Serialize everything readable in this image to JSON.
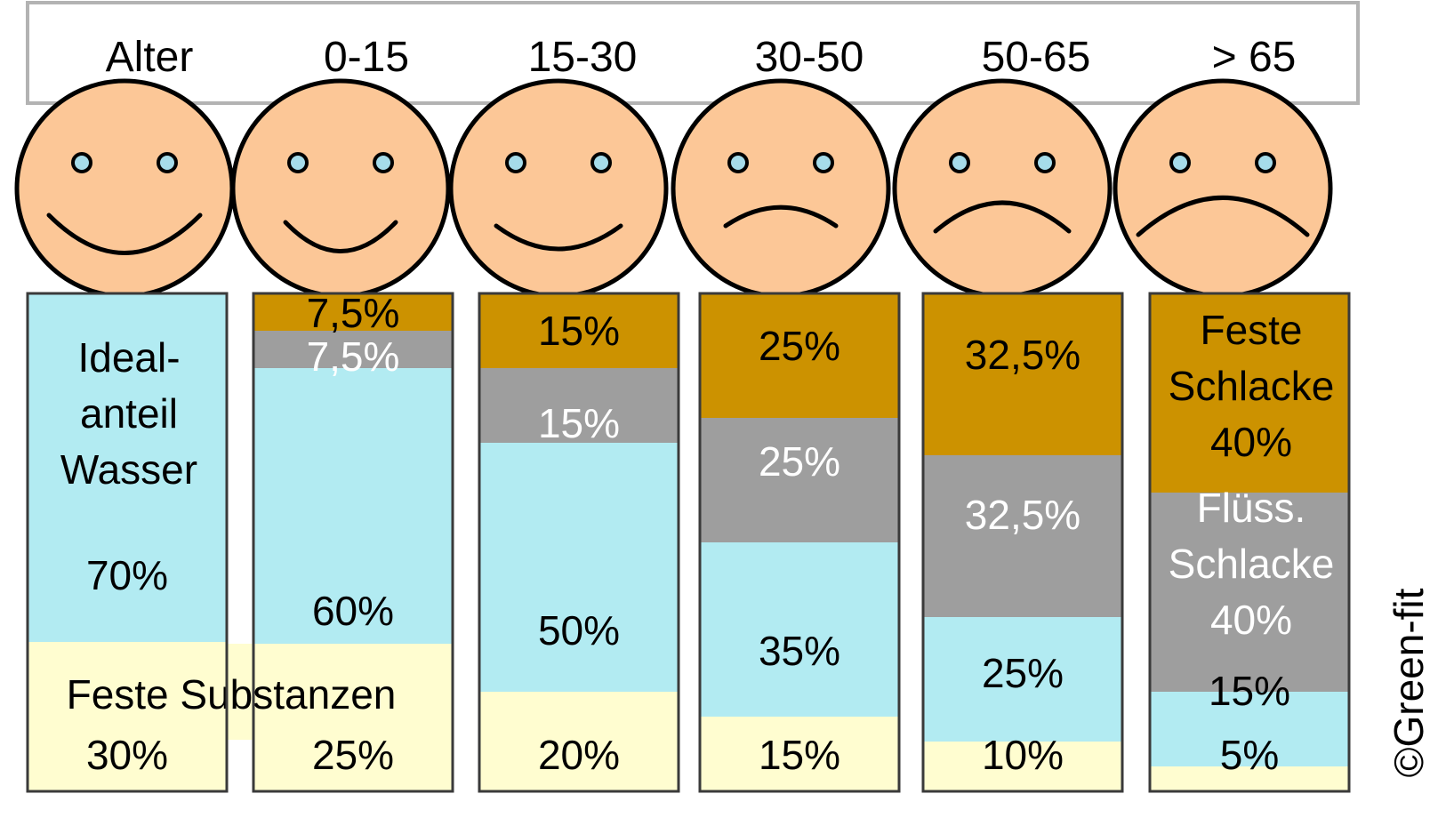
{
  "header": {
    "first_label": "Alter",
    "age_groups": [
      "0-15",
      "15-30",
      "30-50",
      "50-65",
      "> 65"
    ]
  },
  "chart_data": {
    "type": "stacked-bar",
    "categories": [
      "Alter",
      "0-15",
      "15-30",
      "30-50",
      "50-65",
      "> 65"
    ],
    "ylim": [
      0,
      100
    ],
    "unit": "%",
    "series": [
      {
        "name": "Feste Substanzen",
        "values": [
          30,
          25,
          20,
          15,
          10,
          5
        ],
        "labels": [
          "30%",
          "25%",
          "20%",
          "15%",
          "10%",
          "5%"
        ]
      },
      {
        "name": "Wasser",
        "values": [
          70,
          60,
          50,
          35,
          25,
          15
        ],
        "labels": [
          "70%",
          "60%",
          "50%",
          "35%",
          "25%",
          "15%"
        ]
      },
      {
        "name": "Flüss. Schlacke",
        "values": [
          0,
          7.5,
          15,
          25,
          32.5,
          40
        ],
        "labels": [
          "",
          "7,5%",
          "15%",
          "25%",
          "32,5%",
          "40%"
        ]
      },
      {
        "name": "Feste Schlacke",
        "values": [
          0,
          7.5,
          15,
          25,
          32.5,
          40
        ],
        "labels": [
          "",
          "7,5%",
          "15%",
          "25%",
          "32,5%",
          "40%"
        ]
      }
    ],
    "annotations": {
      "ideal_water": [
        "Ideal-",
        "anteil",
        "Wasser"
      ],
      "solids": "Feste Substanzen",
      "solid_slag": [
        "Feste",
        "Schlacke",
        "40%"
      ],
      "liquid_slag": [
        "Flüss.",
        "Schlacke",
        "40%"
      ]
    },
    "mood_faces": [
      "very-happy",
      "happy",
      "neutral",
      "slightly-sad",
      "sad",
      "very-sad"
    ],
    "colors": {
      "solids": "#FFFDD0",
      "water": "#B2EBF2",
      "liquid_slag": "#9E9E9E",
      "solid_slag": "#CC9200",
      "face": "#FCC797",
      "eyes": "#A6DCEA",
      "outline": "#000000"
    }
  },
  "copyright": "©Green-fit"
}
